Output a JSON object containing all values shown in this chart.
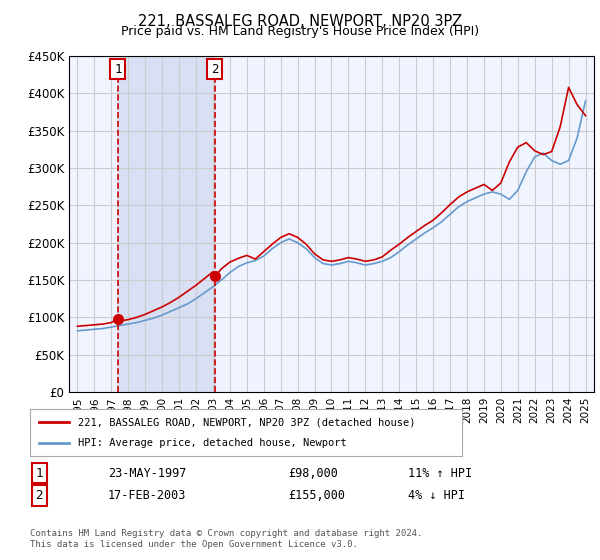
{
  "title1": "221, BASSALEG ROAD, NEWPORT, NP20 3PZ",
  "title2": "Price paid vs. HM Land Registry's House Price Index (HPI)",
  "legend_line1": "221, BASSALEG ROAD, NEWPORT, NP20 3PZ (detached house)",
  "legend_line2": "HPI: Average price, detached house, Newport",
  "transaction1_label": "1",
  "transaction1_date": "23-MAY-1997",
  "transaction1_price": "£98,000",
  "transaction1_hpi": "11% ↑ HPI",
  "transaction1_year": 1997.38,
  "transaction1_value": 98000,
  "transaction2_label": "2",
  "transaction2_date": "17-FEB-2003",
  "transaction2_price": "£155,000",
  "transaction2_hpi": "4% ↓ HPI",
  "transaction2_year": 2003.12,
  "transaction2_value": 155000,
  "footer": "Contains HM Land Registry data © Crown copyright and database right 2024.\nThis data is licensed under the Open Government Licence v3.0.",
  "ylim": [
    0,
    450000
  ],
  "xlim": [
    1994.5,
    2025.5
  ],
  "yticks": [
    0,
    50000,
    100000,
    150000,
    200000,
    250000,
    300000,
    350000,
    400000,
    450000
  ],
  "ytick_labels": [
    "£0",
    "£50K",
    "£100K",
    "£150K",
    "£200K",
    "£250K",
    "£300K",
    "£350K",
    "£400K",
    "£450K"
  ],
  "xticks": [
    1995,
    1996,
    1997,
    1998,
    1999,
    2000,
    2001,
    2002,
    2003,
    2004,
    2005,
    2006,
    2007,
    2008,
    2009,
    2010,
    2011,
    2012,
    2013,
    2014,
    2015,
    2016,
    2017,
    2018,
    2019,
    2020,
    2021,
    2022,
    2023,
    2024,
    2025
  ],
  "grid_color": "#cccccc",
  "bg_color": "#f0f4ff",
  "plot_bg": "#ffffff",
  "shade_color": "#d0d8f0",
  "red_line_color": "#cc0000",
  "blue_line_color": "#6699cc",
  "dashed_line_color": "#cc0000",
  "hpi_data_years": [
    1995,
    1995.5,
    1996,
    1996.5,
    1997,
    1997.5,
    1998,
    1998.5,
    1999,
    1999.5,
    2000,
    2000.5,
    2001,
    2001.5,
    2002,
    2002.5,
    2003,
    2003.5,
    2004,
    2004.5,
    2005,
    2005.5,
    2006,
    2006.5,
    2007,
    2007.5,
    2008,
    2008.5,
    2009,
    2009.5,
    2010,
    2010.5,
    2011,
    2011.5,
    2012,
    2012.5,
    2013,
    2013.5,
    2014,
    2014.5,
    2015,
    2015.5,
    2016,
    2016.5,
    2017,
    2017.5,
    2018,
    2018.5,
    2019,
    2019.5,
    2020,
    2020.5,
    2021,
    2021.5,
    2022,
    2022.5,
    2023,
    2023.5,
    2024,
    2024.5,
    2025
  ],
  "hpi_values": [
    82000,
    83000,
    84000,
    85000,
    87000,
    89000,
    91000,
    93000,
    96000,
    99000,
    103000,
    108000,
    113000,
    118000,
    125000,
    133000,
    141000,
    150000,
    160000,
    168000,
    173000,
    176000,
    182000,
    192000,
    200000,
    205000,
    200000,
    192000,
    180000,
    172000,
    170000,
    172000,
    175000,
    173000,
    170000,
    172000,
    175000,
    180000,
    188000,
    197000,
    205000,
    213000,
    220000,
    228000,
    238000,
    248000,
    255000,
    260000,
    265000,
    268000,
    265000,
    258000,
    270000,
    295000,
    315000,
    320000,
    310000,
    305000,
    310000,
    340000,
    390000
  ],
  "property_data_years": [
    1995,
    1995.5,
    1996,
    1996.5,
    1997,
    1997.38,
    1997.5,
    1998,
    1998.5,
    1999,
    1999.5,
    2000,
    2000.5,
    2001,
    2001.5,
    2002,
    2002.5,
    2003,
    2003.12,
    2003.5,
    2004,
    2004.5,
    2005,
    2005.5,
    2006,
    2006.5,
    2007,
    2007.5,
    2008,
    2008.5,
    2009,
    2009.5,
    2010,
    2010.5,
    2011,
    2011.5,
    2012,
    2012.5,
    2013,
    2013.5,
    2014,
    2014.5,
    2015,
    2015.5,
    2016,
    2016.5,
    2017,
    2017.5,
    2018,
    2018.5,
    2019,
    2019.5,
    2020,
    2020.5,
    2021,
    2021.5,
    2022,
    2022.5,
    2023,
    2023.5,
    2024,
    2024.5,
    2025
  ],
  "property_values": [
    88000,
    89000,
    90000,
    91000,
    93000,
    98000,
    95000,
    97000,
    100000,
    104000,
    109000,
    114000,
    120000,
    127000,
    135000,
    143000,
    152000,
    161000,
    155000,
    165000,
    174000,
    179000,
    183000,
    178000,
    188000,
    198000,
    207000,
    212000,
    207000,
    198000,
    185000,
    177000,
    175000,
    177000,
    180000,
    178000,
    175000,
    177000,
    181000,
    190000,
    198000,
    207000,
    215000,
    223000,
    230000,
    240000,
    251000,
    261000,
    268000,
    273000,
    278000,
    270000,
    280000,
    308000,
    328000,
    334000,
    323000,
    318000,
    322000,
    355000,
    408000,
    385000,
    370000
  ]
}
